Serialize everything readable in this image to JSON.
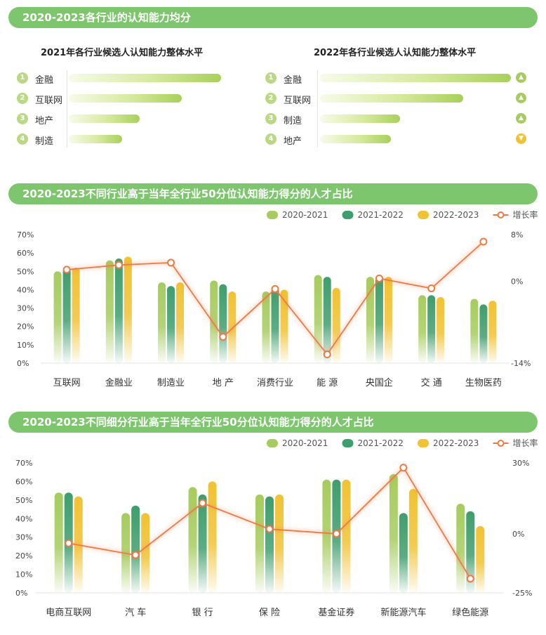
{
  "section1": {
    "title": "2020-2023各行业的认知能力均分",
    "left": {
      "title": "2021年各行业候选人认知能力整体水平",
      "items": [
        {
          "rank": "1",
          "label": "金融",
          "value": 0.97
        },
        {
          "rank": "2",
          "label": "互联网",
          "value": 0.72
        },
        {
          "rank": "3",
          "label": "地产",
          "value": 0.45
        },
        {
          "rank": "4",
          "label": "制造",
          "value": 0.34
        }
      ]
    },
    "right": {
      "title": "2022年各行业候选人认知能力整体水平",
      "items": [
        {
          "rank": "1",
          "label": "金融",
          "value": 1.0,
          "trend": "up"
        },
        {
          "rank": "2",
          "label": "互联网",
          "value": 0.75,
          "trend": "up"
        },
        {
          "rank": "3",
          "label": "制造",
          "value": 0.42,
          "trend": "up"
        },
        {
          "rank": "4",
          "label": "地产",
          "value": 0.37,
          "trend": "down"
        }
      ]
    }
  },
  "colors": {
    "banner": "#7dc66d",
    "s2021": "#a6cc5e",
    "s2122": "#3f9e6d",
    "s2223": "#f1c232",
    "growth": "#ec7a45",
    "up": "#a6cc5e",
    "down": "#f1c232"
  },
  "chart_data": [
    {
      "type": "bar",
      "title": "2020-2023不同行业高于当年全行业50分位认知能力得分的人才占比",
      "categories": [
        "互联网",
        "金融业",
        "制造业",
        "地 产",
        "消费行业",
        "能 源",
        "央国企",
        "交 通",
        "生物医药"
      ],
      "series": [
        {
          "name": "2020-2021",
          "values": [
            50,
            56,
            44,
            45,
            39,
            48,
            47,
            37,
            35
          ]
        },
        {
          "name": "2021-2022",
          "values": [
            52,
            57,
            42,
            43,
            41,
            47,
            47,
            37,
            32
          ]
        },
        {
          "name": "2022-2023",
          "values": [
            52,
            58,
            44,
            39,
            40,
            41,
            47,
            36,
            34
          ]
        }
      ],
      "line": {
        "name": "增长率",
        "values": [
          2,
          2.8,
          3.2,
          -9.5,
          -1.3,
          -12.5,
          0.5,
          -1.2,
          6.8
        ]
      },
      "ylim": [
        0,
        70
      ],
      "yticks": [
        "0%",
        "10%",
        "20%",
        "30%",
        "40%",
        "50%",
        "60%",
        "70%"
      ],
      "y2lim": [
        -14,
        8
      ],
      "y2ticks": [
        {
          "v": 8,
          "label": "8%"
        },
        {
          "v": 0,
          "label": "0%"
        },
        {
          "v": -14,
          "label": "-14%"
        }
      ],
      "legend": "top-right"
    },
    {
      "type": "bar",
      "title": "2020-2023不同细分行业高于当年全行业50分位认知能力得分的人才占比",
      "categories": [
        "电商互联网",
        "汽 车",
        "银 行",
        "保 险",
        "基金证券",
        "新能源汽车",
        "绿色能源"
      ],
      "series": [
        {
          "name": "2020-2021",
          "values": [
            54,
            43,
            57,
            53,
            61,
            64,
            48
          ]
        },
        {
          "name": "2021-2022",
          "values": [
            54,
            47,
            53,
            52,
            61,
            43,
            44
          ]
        },
        {
          "name": "2022-2023",
          "values": [
            52,
            43,
            60,
            53,
            61,
            56,
            36
          ]
        }
      ],
      "line": {
        "name": "增长率",
        "values": [
          -4,
          -9,
          13,
          2,
          0,
          28,
          -19
        ]
      },
      "ylim": [
        0,
        70
      ],
      "yticks": [
        "0%",
        "10%",
        "20%",
        "30%",
        "40%",
        "50%",
        "60%",
        "70%"
      ],
      "y2lim": [
        -25,
        30
      ],
      "y2ticks": [
        {
          "v": 30,
          "label": "30%"
        },
        {
          "v": 0,
          "label": "0%"
        },
        {
          "v": -25,
          "label": "-25%"
        }
      ],
      "legend": "top-right"
    }
  ]
}
